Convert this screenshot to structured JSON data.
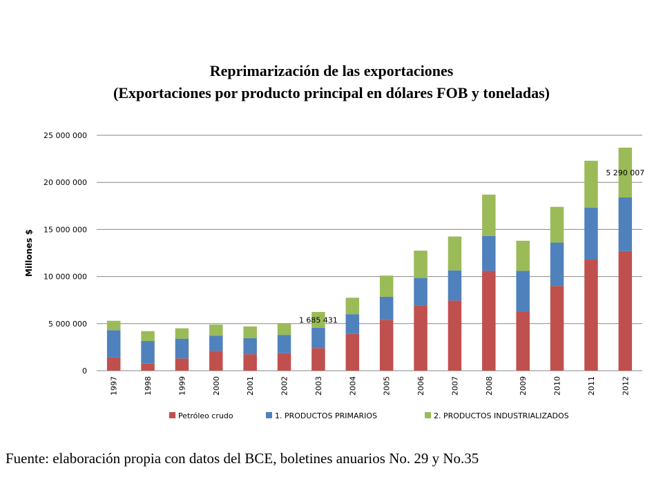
{
  "chart_data": {
    "type": "bar",
    "stacked": true,
    "title": "Reprimarización de las exportaciones",
    "subtitle": "(Exportaciones por producto principal en dólares FOB y toneladas)",
    "xlabel": "",
    "ylabel": "Millones $",
    "ylim": [
      0,
      25000000
    ],
    "yticks": [
      0,
      5000000,
      10000000,
      15000000,
      20000000,
      25000000
    ],
    "ytick_labels": [
      "0",
      "5 000 000",
      "10 000 000",
      "15 000 000",
      "20 000 000",
      "25 000 000"
    ],
    "grid": true,
    "legend_position": "bottom",
    "categories": [
      "1997",
      "1998",
      "1999",
      "2000",
      "2001",
      "2002",
      "2003",
      "2004",
      "2005",
      "2006",
      "2007",
      "2008",
      "2009",
      "2010",
      "2011",
      "2012"
    ],
    "series": [
      {
        "name": "Petróleo crudo",
        "color": "#C0504D",
        "values": [
          1400000,
          750000,
          1300000,
          2100000,
          1750000,
          1850000,
          2400000,
          3900000,
          5400000,
          6950000,
          7450000,
          10600000,
          6300000,
          9000000,
          11800000,
          12700000
        ]
      },
      {
        "name": "1. PRODUCTOS PRIMARIOS",
        "color": "#4F81BD",
        "values": [
          2900000,
          2400000,
          2100000,
          1600000,
          1700000,
          1950000,
          2150000,
          2100000,
          2450000,
          2900000,
          3200000,
          3700000,
          4300000,
          4600000,
          5500000,
          5700000
        ]
      },
      {
        "name": "2. PRODUCTOS INDUSTRIALIZADOS",
        "color": "#9BBB59",
        "values": [
          1000000,
          1050000,
          1100000,
          1200000,
          1250000,
          1250000,
          1685431,
          1750000,
          2250000,
          2900000,
          3600000,
          4400000,
          3200000,
          3800000,
          5000000,
          5290007
        ]
      }
    ],
    "annotations": [
      {
        "category": "2003",
        "series": 2,
        "text": "1 685 431"
      },
      {
        "category": "2012",
        "series": 2,
        "text": "5 290 007"
      }
    ]
  },
  "source_note": "Fuente: elaboración propia con datos del BCE, boletines anuarios No. 29 y No.35"
}
